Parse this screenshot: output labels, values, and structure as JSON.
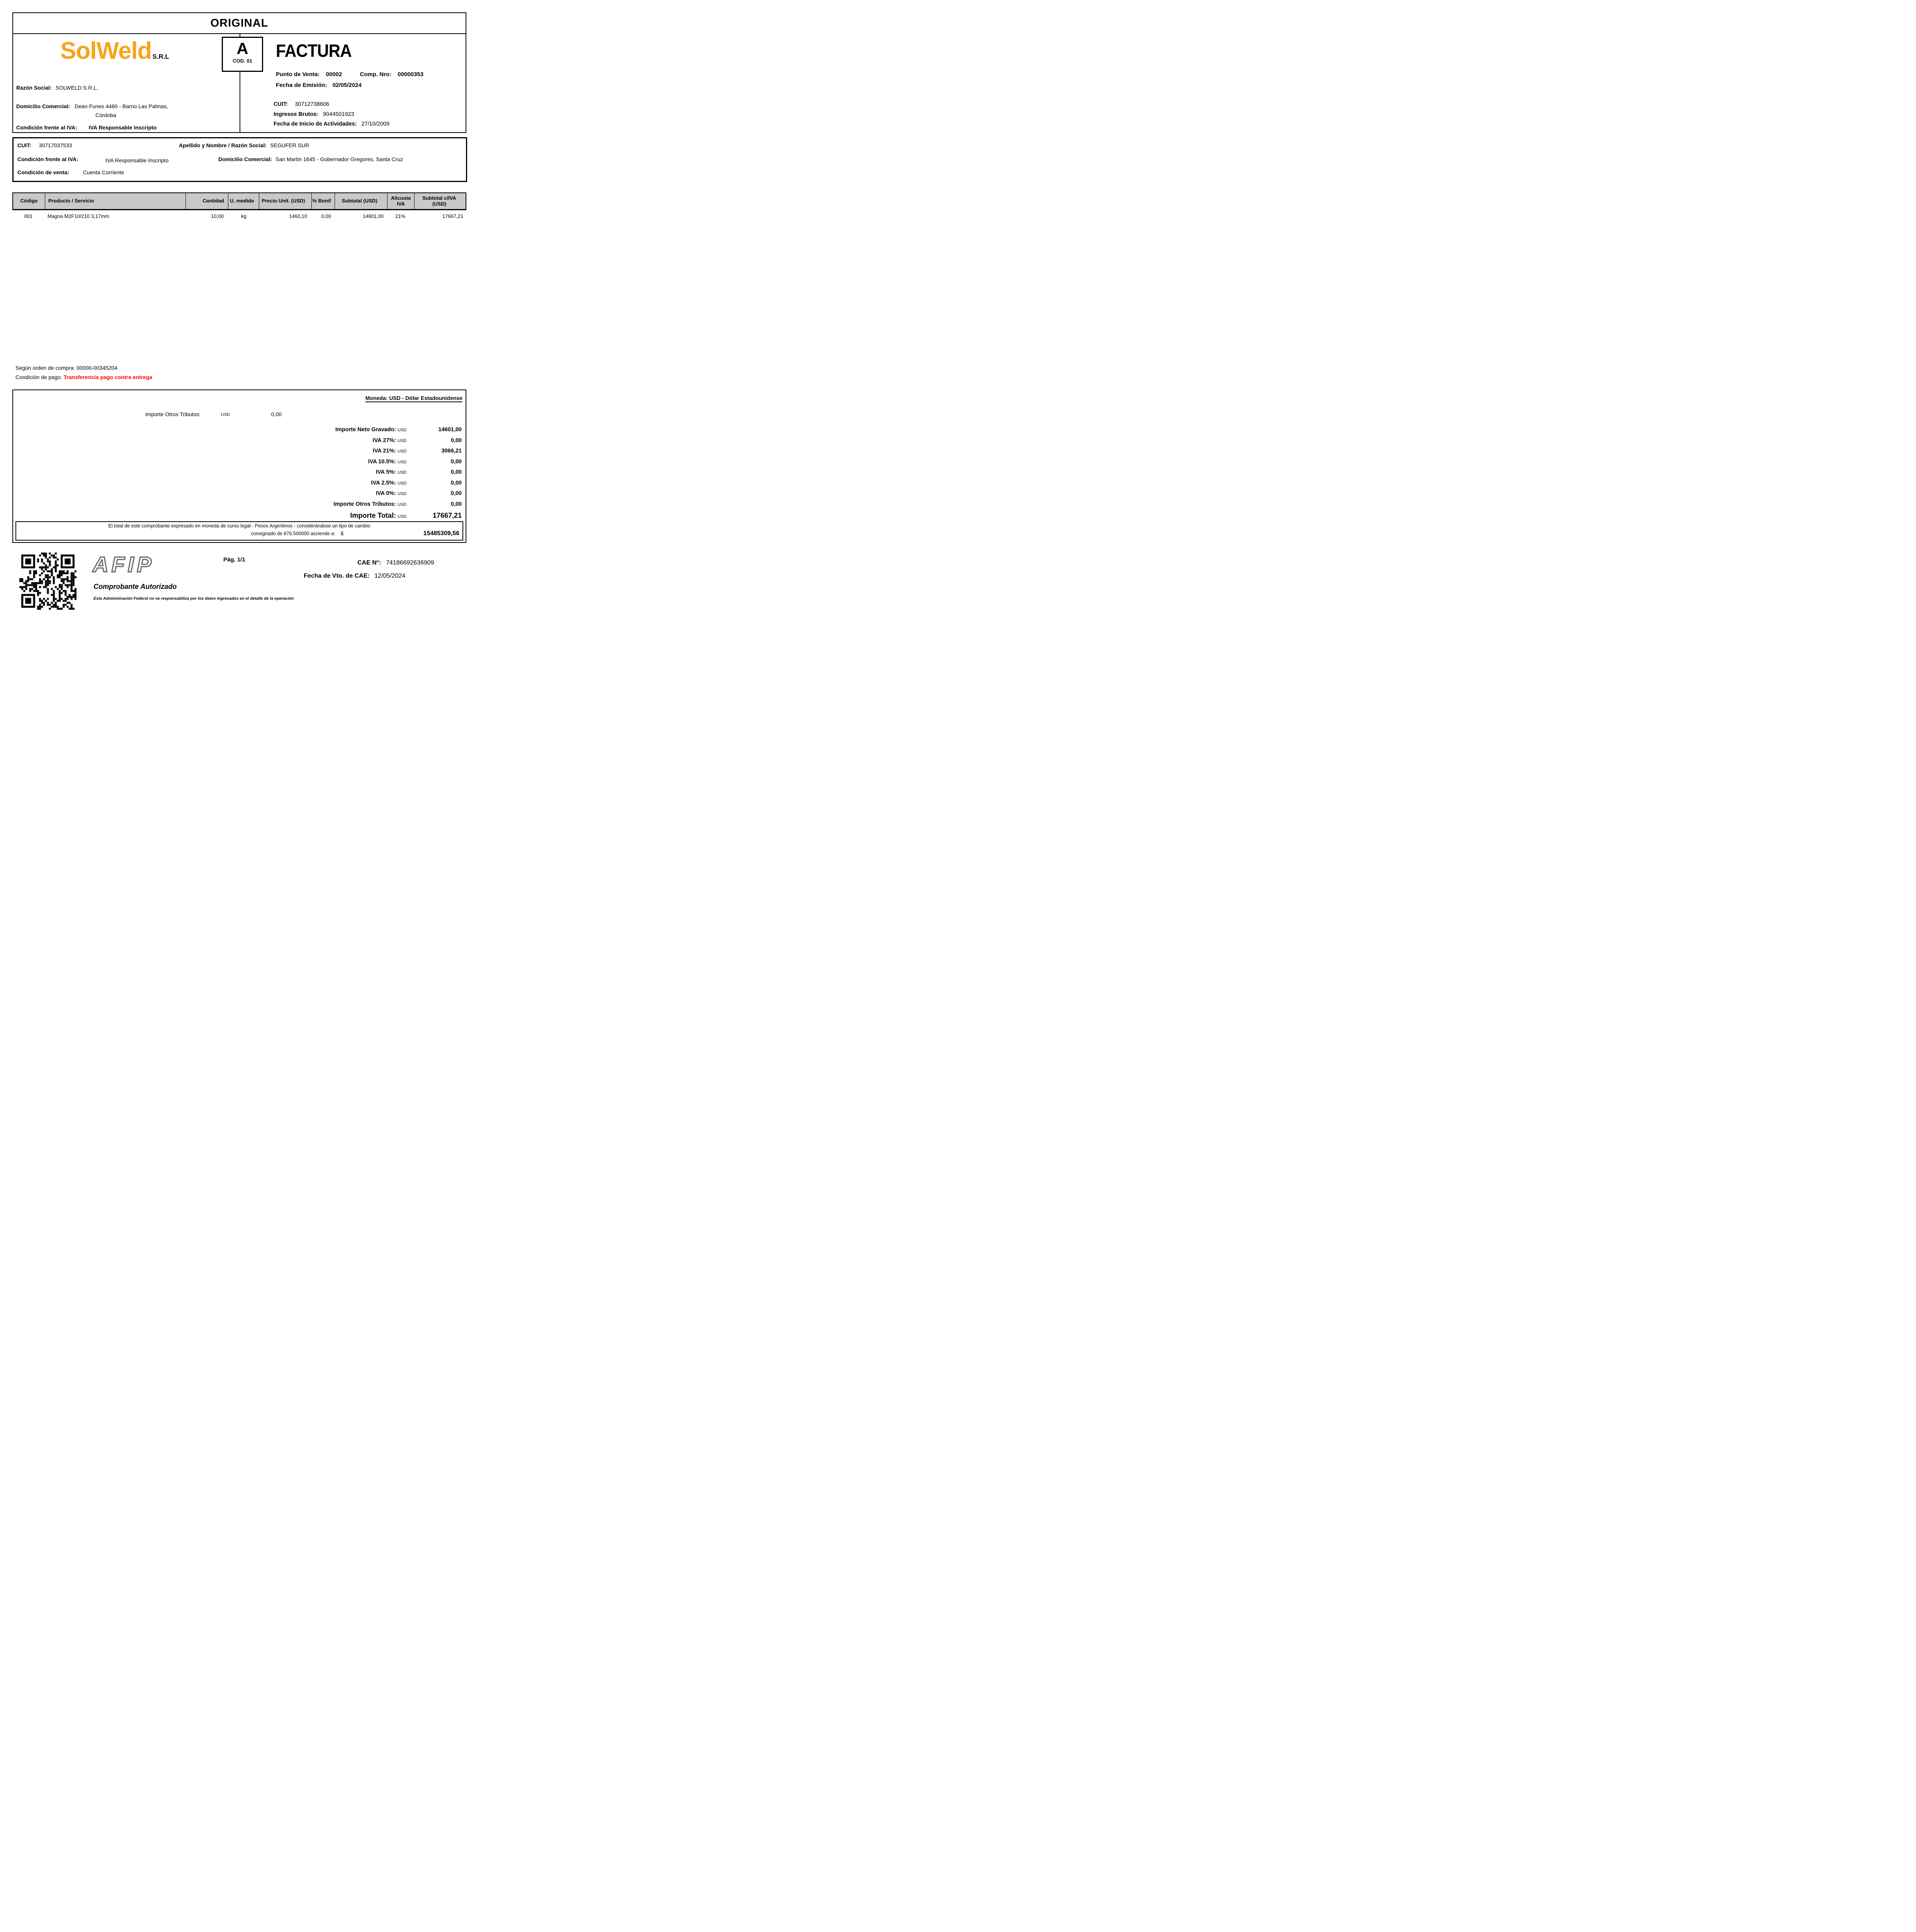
{
  "copy_type": "ORIGINAL",
  "header": {
    "logo_brand": "SolWeld",
    "logo_suffix": "S.R.L",
    "letter": "A",
    "letter_code": "COD. 01",
    "doc_type": "FACTURA",
    "punto_venta_label": "Punto de Venta:",
    "punto_venta": "00002",
    "comp_nro_label": "Comp. Nro:",
    "comp_nro": "00000353",
    "fecha_emision_label": "Fecha de Emisión:",
    "fecha_emision": "02/05/2024",
    "razon_social_label": "Razón Social:",
    "razon_social": "SOLWELD S.R.L.",
    "domicilio_label": "Domicilio Comercial:",
    "domicilio_line1": "Dean Funes 4480 - Barrio Las Palmas,",
    "domicilio_line2": "Córdoba",
    "condicion_iva_label": "Condición frente al IVA:",
    "condicion_iva": "IVA Responsable Inscripto",
    "cuit_label": "CUIT:",
    "cuit": "30712738606",
    "iibb_label": "Ingresos Brutos:",
    "iibb": "9044501923",
    "inicio_label": "Fecha de Inicio de Actividades:",
    "inicio": "27/10/2009"
  },
  "client": {
    "cuit_label": "CUIT:",
    "cuit": "30717037533",
    "nombre_label": "Apellido y Nombre / Razón Social:",
    "nombre": "SEGUFER SUR",
    "condicion_iva_label": "Condición frente al IVA:",
    "condicion_iva": "IVA Responsable Inscripto",
    "domicilio_label": "Domicilio Comercial:",
    "domicilio": "San Martin 1645 - Gobernador Gregores, Santa Cruz",
    "condicion_venta_label": "Condición de venta:",
    "condicion_venta": "Cuenta Corriente"
  },
  "table": {
    "columns": [
      "Código",
      "Producto / Servicio",
      "Cantidad",
      "U. medida",
      "Precio Unit. (USD)",
      "% Bonif",
      "Subtotal (USD)",
      "Alicuota\nIVA",
      "Subtotal c/IVA\n(USD)"
    ],
    "rows": [
      [
        "001",
        "Magna M2F10/210 3,17mm",
        "10,00",
        "kg",
        "1460,10",
        "0,00",
        "14601,00",
        "21%",
        "17667,21"
      ]
    ]
  },
  "order": {
    "line1": "Según orden de compra: 00000-00345204",
    "pago_label": "Condición de pago: ",
    "pago_value": "Transferencia pago contra entrega"
  },
  "totals": {
    "moneda": "Moneda: USD - Dólar Estadounidense",
    "otros_tributos_top_label": "Importe Otros Tributos:",
    "otros_tributos_top_cur": "USD",
    "otros_tributos_top_value": "0,00",
    "rows": [
      {
        "label": "Importe Neto Gravado:",
        "cur": "USD",
        "value": "14601,00"
      },
      {
        "label": "IVA 27%:",
        "cur": "USD",
        "value": "0,00"
      },
      {
        "label": "IVA 21%:",
        "cur": "USD",
        "value": "3066,21"
      },
      {
        "label": "IVA 10.5%:",
        "cur": "USD",
        "value": "0,00"
      },
      {
        "label": "IVA 5%:",
        "cur": "USD",
        "value": "0,00"
      },
      {
        "label": "IVA 2.5%:",
        "cur": "USD",
        "value": "0,00"
      },
      {
        "label": "IVA 0%:",
        "cur": "USD",
        "value": "0,00"
      },
      {
        "label": "Importe Otros Tributos:",
        "cur": "USD",
        "value": "0,00"
      },
      {
        "label": "Importe Total:",
        "cur": "USD",
        "value": "17667,21"
      }
    ],
    "legal_line1": "El total de este comprobante expresado en moneda de curso legal - Pesos Argentinos - considerándose un tipo de cambio",
    "legal_line2": "consignado de 876.500000 asciende a:",
    "legal_cur": "$",
    "legal_amount": "15485309,56"
  },
  "footer": {
    "page": "Pág. 1/1",
    "afip_logo": "AFIP",
    "cae_label": "CAE N°:",
    "cae": "74186692636909",
    "vto_label": "Fecha de Vto. de CAE:",
    "vto": "12/05/2024",
    "autorizado": "Comprobante Autorizado",
    "disclaimer": "Esta Administración Federal no se responsabiliza por los datos ingresados en el detalle de la operación"
  },
  "colors": {
    "accent_orange": "#F7A41D",
    "alert_red": "#FF0000",
    "table_header_gray": "#C9C9C9",
    "afip_gray": "#676767"
  }
}
